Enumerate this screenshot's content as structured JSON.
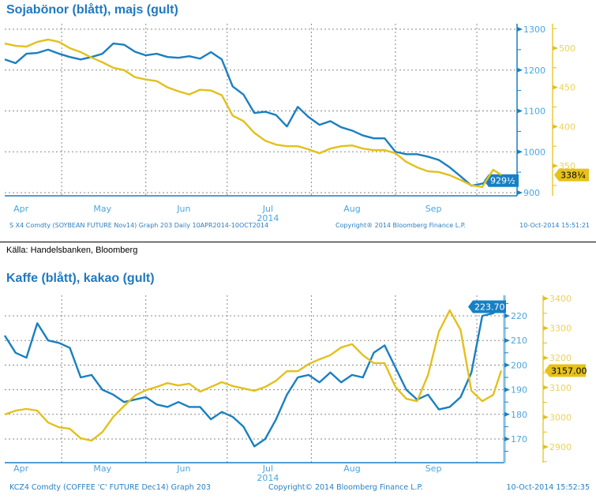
{
  "source_note": "Källa: Handelsbanken, Bloomberg",
  "colors": {
    "blue": "#1a7fc0",
    "yellow": "#e3c01c",
    "blue_axis_text": "#4ba6e0",
    "yellow_axis_text": "#ecd15a",
    "title": "#1f78c1"
  },
  "chart_data": [
    {
      "type": "line",
      "title": "Sojabönor (blått), majs (gult)",
      "x_tick_labels": [
        "Apr",
        "May",
        "Jun",
        "Jul",
        "Aug",
        "Sep"
      ],
      "x_year_label": "2014",
      "xlim": [
        "2014-04-10",
        "2014-10-10"
      ],
      "left_axis": {
        "ylim": [
          890,
          1310
        ],
        "ticks": [
          900,
          1000,
          1100,
          1200,
          1300
        ]
      },
      "right_axis": {
        "ylim": [
          330,
          510
        ],
        "ticks": [
          350,
          400,
          450,
          500
        ]
      },
      "grid": true,
      "footer_left": "S X4 Comdty (SOYBEAN FUTURE    Nov14) Graph 203  Daily 10APR2014-10OCT2014",
      "footer_mid": "Copyright® 2014 Bloomberg Finance L.P.",
      "footer_right": "10-Oct-2014 15:51:21",
      "x": [
        "2014-04-10",
        "2014-04-14",
        "2014-04-18",
        "2014-04-22",
        "2014-04-26",
        "2014-04-30",
        "2014-05-04",
        "2014-05-08",
        "2014-05-12",
        "2014-05-16",
        "2014-05-20",
        "2014-05-24",
        "2014-05-28",
        "2014-06-01",
        "2014-06-05",
        "2014-06-09",
        "2014-06-13",
        "2014-06-17",
        "2014-06-21",
        "2014-06-25",
        "2014-06-29",
        "2014-07-03",
        "2014-07-07",
        "2014-07-11",
        "2014-07-15",
        "2014-07-19",
        "2014-07-23",
        "2014-07-27",
        "2014-07-31",
        "2014-08-04",
        "2014-08-08",
        "2014-08-12",
        "2014-08-16",
        "2014-08-20",
        "2014-08-24",
        "2014-08-28",
        "2014-09-01",
        "2014-09-05",
        "2014-09-09",
        "2014-09-13",
        "2014-09-17",
        "2014-09-21",
        "2014-09-25",
        "2014-09-29",
        "2014-10-03",
        "2014-10-07",
        "2014-10-10"
      ],
      "series": [
        {
          "axis": "left",
          "color": "blue",
          "last_label": "929½",
          "values": [
            1226,
            1217,
            1240,
            1242,
            1250,
            1240,
            1232,
            1226,
            1232,
            1240,
            1265,
            1262,
            1245,
            1236,
            1240,
            1232,
            1230,
            1234,
            1228,
            1244,
            1226,
            1160,
            1140,
            1095,
            1098,
            1090,
            1062,
            1110,
            1085,
            1066,
            1075,
            1060,
            1052,
            1040,
            1033,
            1033,
            1000,
            994,
            994,
            988,
            980,
            962,
            940,
            917,
            922,
            940,
            929.5
          ]
        },
        {
          "axis": "right",
          "color": "yellow",
          "last_label": "338¼",
          "values": [
            506,
            503,
            502,
            508,
            511,
            508,
            500,
            495,
            488,
            482,
            475,
            472,
            463,
            460,
            458,
            450,
            445,
            441,
            447,
            446,
            440,
            414,
            407,
            392,
            382,
            377,
            375,
            375,
            371,
            366,
            372,
            375,
            376,
            372,
            370,
            370,
            366,
            355,
            348,
            343,
            342,
            338,
            332,
            325,
            323,
            345,
            338.25
          ]
        }
      ]
    },
    {
      "type": "line",
      "title": "Kaffe (blått), kakao (gult)",
      "x_tick_labels": [
        "Apr",
        "May",
        "Jun",
        "Jul",
        "Aug",
        "Sep"
      ],
      "x_year_label": "2014",
      "xlim": [
        "2014-04-10",
        "2014-10-10"
      ],
      "left_axis": {
        "ylim": [
          162,
          225
        ],
        "ticks": [
          170,
          180,
          190,
          200,
          210,
          220
        ]
      },
      "right_axis": {
        "ylim": [
          2850,
          3410
        ],
        "ticks": [
          2900,
          3000,
          3100,
          3200,
          3300,
          3400
        ]
      },
      "grid": true,
      "footer_left": "KCZ4 Comdty (COFFEE 'C' FUTURE Dec14) Graph 203",
      "footer_mid": "Copyright© 2014 Bloomberg Finance L.P.",
      "footer_right": "10-Oct-2014 15:52:35",
      "x": [
        "2014-04-10",
        "2014-04-14",
        "2014-04-18",
        "2014-04-22",
        "2014-04-26",
        "2014-04-30",
        "2014-05-04",
        "2014-05-08",
        "2014-05-12",
        "2014-05-16",
        "2014-05-20",
        "2014-05-24",
        "2014-05-28",
        "2014-06-01",
        "2014-06-05",
        "2014-06-09",
        "2014-06-13",
        "2014-06-17",
        "2014-06-21",
        "2014-06-25",
        "2014-06-29",
        "2014-07-03",
        "2014-07-07",
        "2014-07-11",
        "2014-07-15",
        "2014-07-19",
        "2014-07-23",
        "2014-07-27",
        "2014-07-31",
        "2014-08-04",
        "2014-08-08",
        "2014-08-12",
        "2014-08-16",
        "2014-08-20",
        "2014-08-24",
        "2014-08-28",
        "2014-09-01",
        "2014-09-05",
        "2014-09-09",
        "2014-09-13",
        "2014-09-17",
        "2014-09-21",
        "2014-09-25",
        "2014-09-29",
        "2014-10-03",
        "2014-10-07",
        "2014-10-10"
      ],
      "series": [
        {
          "axis": "left",
          "color": "blue",
          "last_label": "223.70",
          "values": [
            212,
            205,
            203,
            217,
            210,
            209,
            207,
            195,
            196,
            190,
            188,
            185,
            186,
            187,
            184,
            183,
            185,
            183,
            183,
            178,
            181,
            179,
            175,
            167,
            170,
            178,
            188,
            195,
            196,
            193,
            197,
            193,
            196,
            195,
            205,
            208,
            199,
            190,
            186,
            188,
            182,
            183,
            187,
            197,
            220,
            221,
            223.7
          ]
        },
        {
          "axis": "right",
          "color": "yellow",
          "last_label": "3157.00",
          "values": [
            3009,
            3022,
            3028,
            3022,
            2982,
            2966,
            2961,
            2929,
            2921,
            2950,
            3001,
            3038,
            3073,
            3091,
            3102,
            3115,
            3107,
            3113,
            3086,
            3102,
            3118,
            3105,
            3097,
            3089,
            3102,
            3123,
            3155,
            3155,
            3179,
            3195,
            3209,
            3235,
            3246,
            3209,
            3182,
            3182,
            3102,
            3062,
            3054,
            3142,
            3288,
            3360,
            3294,
            3089,
            3054,
            3075,
            3157
          ]
        }
      ]
    }
  ]
}
